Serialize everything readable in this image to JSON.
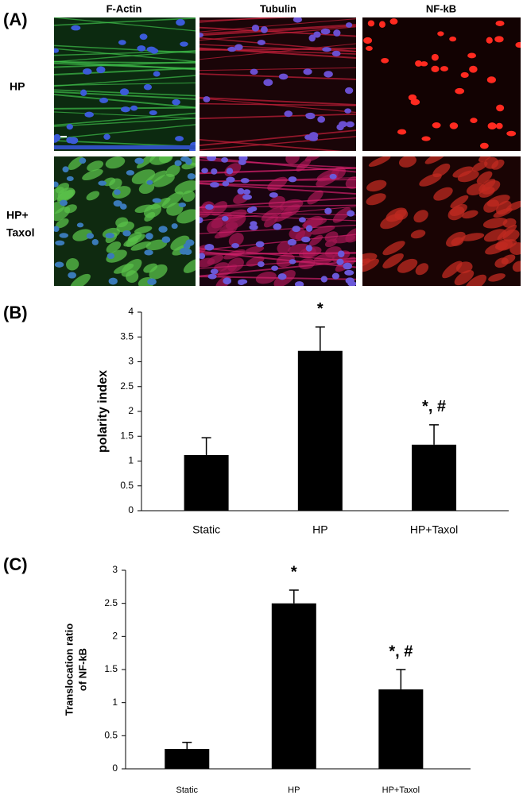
{
  "panel_a": {
    "label": "(A)",
    "columns": [
      "F-Actin",
      "Tubulin",
      "NF-kB"
    ],
    "rows": [
      [
        "HP"
      ],
      [
        "HP+",
        "Taxol"
      ]
    ]
  },
  "chart_data": [
    {
      "type": "bar",
      "label": "(B)",
      "ylabel": [
        "polarity index"
      ],
      "categories": [
        "Static",
        "HP",
        "HP+Taxol"
      ],
      "values": [
        1.12,
        3.22,
        1.33
      ],
      "errors": [
        0.35,
        0.48,
        0.4
      ],
      "annotations": [
        null,
        "*",
        "*, #"
      ],
      "color": "#000000",
      "ylim": [
        0,
        4
      ],
      "yticks": [
        0,
        0.5,
        1,
        1.5,
        2,
        2.5,
        3,
        3.5,
        4
      ]
    },
    {
      "type": "bar",
      "label": "(C)",
      "ylabel": [
        "Translocation ratio",
        "of NF-kB"
      ],
      "categories": [
        "Static",
        "HP",
        "HP+Taxol"
      ],
      "values": [
        0.3,
        2.5,
        1.2
      ],
      "errors": [
        0.1,
        0.2,
        0.3
      ],
      "annotations": [
        null,
        "*",
        "*, #"
      ],
      "color": "#000000",
      "ylim": [
        0,
        3
      ],
      "yticks": [
        0,
        0.5,
        1,
        1.5,
        2,
        2.5,
        3
      ]
    }
  ]
}
